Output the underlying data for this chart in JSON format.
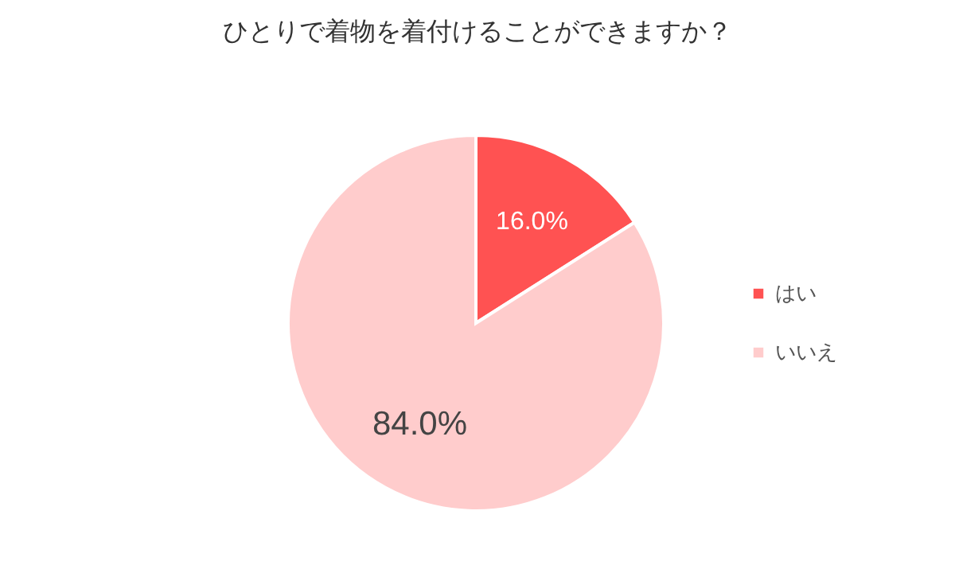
{
  "chart_data": {
    "type": "pie",
    "title": "ひとりで着物を着付けることができますか？",
    "categories": [
      "はい",
      "いいえ"
    ],
    "values": [
      16,
      84
    ],
    "colors": [
      "#ff5252",
      "#ffcccc"
    ],
    "value_labels": [
      "16.0%",
      "84.0%"
    ],
    "legend": "right"
  }
}
